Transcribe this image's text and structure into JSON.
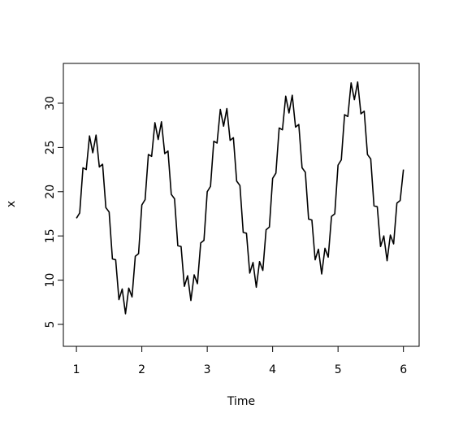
{
  "chart_data": {
    "type": "line",
    "xlabel": "Time",
    "ylabel": "x",
    "color": "#000000",
    "x": [
      1,
      1.05,
      1.1,
      1.15,
      1.2,
      1.25,
      1.3,
      1.35,
      1.4,
      1.45,
      1.5,
      1.55,
      1.6,
      1.65,
      1.7,
      1.75,
      1.8,
      1.85,
      1.9,
      1.95,
      2,
      2.05,
      2.1,
      2.15,
      2.2,
      2.25,
      2.3,
      2.35,
      2.4,
      2.45,
      2.5,
      2.55,
      2.6,
      2.65,
      2.7,
      2.75,
      2.8,
      2.85,
      2.9,
      2.95,
      3,
      3.05,
      3.1,
      3.15,
      3.2,
      3.25,
      3.3,
      3.35,
      3.4,
      3.45,
      3.5,
      3.55,
      3.6,
      3.65,
      3.7,
      3.75,
      3.8,
      3.85,
      3.9,
      3.95,
      4,
      4.05,
      4.1,
      4.15,
      4.2,
      4.25,
      4.3,
      4.35,
      4.4,
      4.45,
      4.5,
      4.55,
      4.6,
      4.65,
      4.7,
      4.75,
      4.8,
      4.85,
      4.9,
      4.95,
      5,
      5.05,
      5.1,
      5.15,
      5.2,
      5.25,
      5.3,
      5.35,
      5.4,
      5.45,
      5.5,
      5.55,
      5.6,
      5.65,
      5.7,
      5.75,
      5.8,
      5.85,
      5.9,
      5.95,
      6
    ],
    "values": [
      17.0,
      17.6,
      22.7,
      22.5,
      26.3,
      24.4,
      26.4,
      22.8,
      23.1,
      18.2,
      17.7,
      12.4,
      12.3,
      7.8,
      9.0,
      6.2,
      9.1,
      8.1,
      12.7,
      13.0,
      18.5,
      19.1,
      24.2,
      24.0,
      27.8,
      25.9,
      27.9,
      24.3,
      24.6,
      19.7,
      19.2,
      13.9,
      13.8,
      9.3,
      10.5,
      7.7,
      10.6,
      9.6,
      14.2,
      14.5,
      20.0,
      20.6,
      25.7,
      25.5,
      29.3,
      27.4,
      29.4,
      25.8,
      26.1,
      21.2,
      20.7,
      15.4,
      15.3,
      10.8,
      12.0,
      9.2,
      12.1,
      11.1,
      15.7,
      16.0,
      21.5,
      22.1,
      27.2,
      27.0,
      30.8,
      28.9,
      30.9,
      27.3,
      27.6,
      22.7,
      22.2,
      16.9,
      16.8,
      12.3,
      13.5,
      10.7,
      13.6,
      12.6,
      17.2,
      17.5,
      23.0,
      23.6,
      28.7,
      28.5,
      32.3,
      30.4,
      32.4,
      28.8,
      29.1,
      24.2,
      23.7,
      18.4,
      18.3,
      13.8,
      15.0,
      12.2,
      15.1,
      14.1,
      18.7,
      19.0,
      22.5
    ],
    "xlim": [
      0.8,
      6.24
    ],
    "xticks": [
      1,
      2,
      3,
      4,
      5,
      6
    ],
    "ylim": [
      2.52,
      34.5
    ],
    "yticks": [
      5,
      10,
      15,
      20,
      25,
      30
    ]
  }
}
